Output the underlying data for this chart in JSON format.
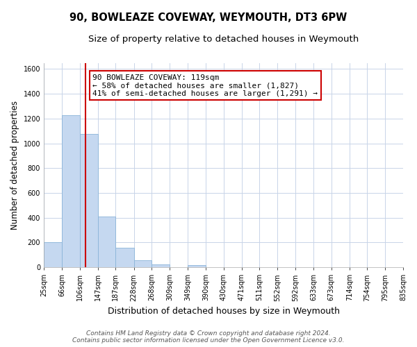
{
  "title": "90, BOWLEAZE COVEWAY, WEYMOUTH, DT3 6PW",
  "subtitle": "Size of property relative to detached houses in Weymouth",
  "xlabel": "Distribution of detached houses by size in Weymouth",
  "ylabel": "Number of detached properties",
  "bar_edges": [
    25,
    66,
    106,
    147,
    187,
    228,
    268,
    309,
    349,
    390,
    430,
    471,
    511,
    552,
    592,
    633,
    673,
    714,
    754,
    795,
    835
  ],
  "bar_heights": [
    200,
    1230,
    1075,
    410,
    160,
    55,
    25,
    0,
    18,
    0,
    0,
    0,
    0,
    0,
    0,
    0,
    0,
    0,
    0,
    0
  ],
  "bar_color": "#c5d8f0",
  "bar_edgecolor": "#8ab4d8",
  "vline_x": 119,
  "vline_color": "#cc0000",
  "ylim": [
    0,
    1650
  ],
  "yticks": [
    0,
    200,
    400,
    600,
    800,
    1000,
    1200,
    1400,
    1600
  ],
  "xtick_labels": [
    "25sqm",
    "66sqm",
    "106sqm",
    "147sqm",
    "187sqm",
    "228sqm",
    "268sqm",
    "309sqm",
    "349sqm",
    "390sqm",
    "430sqm",
    "471sqm",
    "511sqm",
    "552sqm",
    "592sqm",
    "633sqm",
    "673sqm",
    "714sqm",
    "754sqm",
    "795sqm",
    "835sqm"
  ],
  "annotation_line1": "90 BOWLEAZE COVEWAY: 119sqm",
  "annotation_line2": "← 58% of detached houses are smaller (1,827)",
  "annotation_line3": "41% of semi-detached houses are larger (1,291) →",
  "footer_line1": "Contains HM Land Registry data © Crown copyright and database right 2024.",
  "footer_line2": "Contains public sector information licensed under the Open Government Licence v3.0.",
  "bg_color": "#ffffff",
  "grid_color": "#c8d4e8",
  "annotation_box_color": "#ffffff",
  "annotation_box_edgecolor": "#cc0000",
  "title_fontsize": 10.5,
  "subtitle_fontsize": 9.5,
  "ylabel_fontsize": 8.5,
  "xlabel_fontsize": 9,
  "tick_fontsize": 7,
  "annotation_fontsize": 8,
  "footer_fontsize": 6.5
}
